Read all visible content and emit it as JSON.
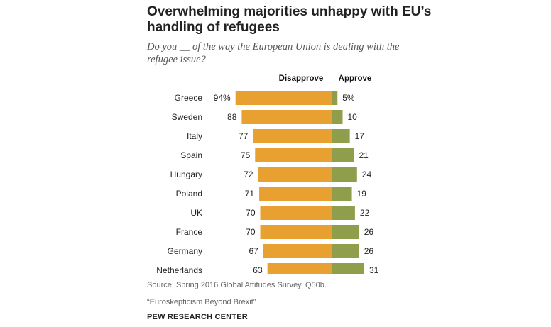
{
  "header": {
    "title": "Overwhelming majorities unhappy with EU’s handling of refugees",
    "subtitle": "Do you __ of the way the European Union is dealing with the refugee issue?"
  },
  "chart_data": {
    "type": "bar",
    "orientation": "horizontal-diverging",
    "categories": [
      "Greece",
      "Sweden",
      "Italy",
      "Spain",
      "Hungary",
      "Poland",
      "UK",
      "France",
      "Germany",
      "Netherlands"
    ],
    "series": [
      {
        "name": "Disapprove",
        "color": "#E8A131",
        "values": [
          94,
          88,
          77,
          75,
          72,
          71,
          70,
          70,
          67,
          63
        ],
        "labels": [
          "94%",
          "88",
          "77",
          "75",
          "72",
          "71",
          "70",
          "70",
          "67",
          "63"
        ]
      },
      {
        "name": "Approve",
        "color": "#8E9E4A",
        "values": [
          5,
          10,
          17,
          21,
          24,
          19,
          22,
          26,
          26,
          31
        ],
        "labels": [
          "5%",
          "10",
          "17",
          "21",
          "24",
          "19",
          "22",
          "26",
          "26",
          "31"
        ]
      }
    ],
    "unit": "%",
    "legend": [
      "Disapprove",
      "Approve"
    ]
  },
  "footer": {
    "source": "Source: Spring 2016 Global Attitudes Survey. Q50b.",
    "report": "“Euroskepticism Beyond Brexit”",
    "org": "PEW RESEARCH CENTER"
  }
}
